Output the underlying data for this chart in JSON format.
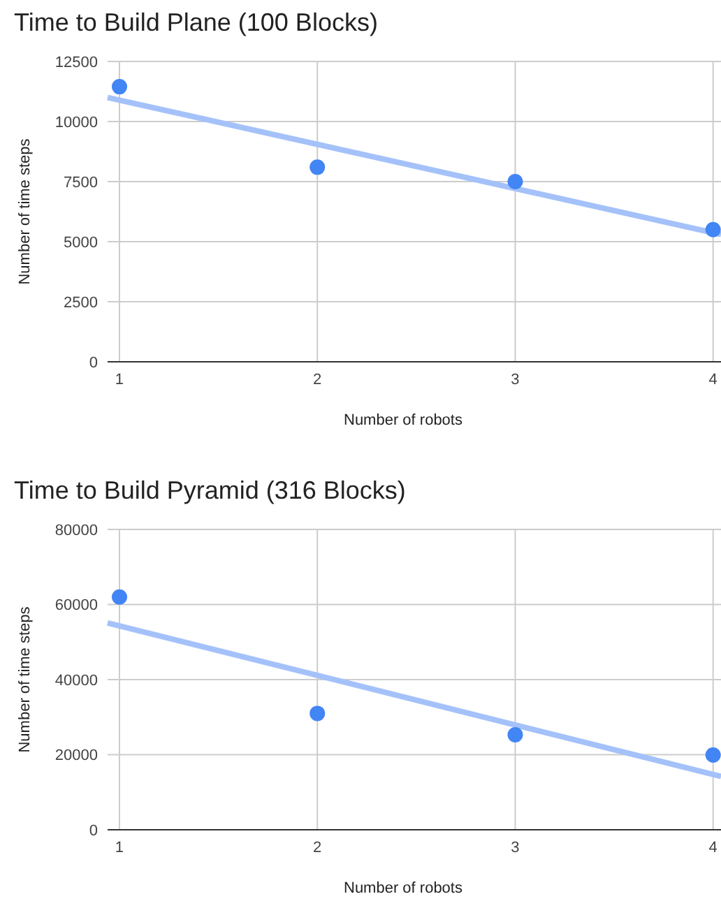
{
  "chart_data": [
    {
      "type": "scatter",
      "title": "Time to Build Plane (100 Blocks)",
      "xlabel": "Number of robots",
      "ylabel": "Number of time steps",
      "xlim": [
        0.94,
        4.04
      ],
      "xticks": [
        1,
        2,
        3,
        4
      ],
      "ylim": [
        0,
        12500
      ],
      "yticks": [
        0,
        2500,
        5000,
        7500,
        10000,
        12500
      ],
      "grid": true,
      "marker": "circle",
      "series": [
        {
          "color": "#4285f4",
          "x": [
            1,
            2,
            3,
            4
          ],
          "values": [
            11450,
            8100,
            7500,
            5500
          ]
        },
        {
          "type": "line",
          "color": "#a4c2f9",
          "x": [
            0.94,
            4.04
          ],
          "values": [
            11000,
            5300
          ],
          "line_style": "solid",
          "marker": "none"
        }
      ]
    },
    {
      "type": "scatter",
      "title": "Time to Build Pyramid (316 Blocks)",
      "xlabel": "Number of robots",
      "ylabel": "Number of time steps",
      "xlim": [
        0.94,
        4.04
      ],
      "xticks": [
        1,
        2,
        3,
        4
      ],
      "ylim": [
        0,
        80000
      ],
      "yticks": [
        0,
        20000,
        40000,
        60000,
        80000
      ],
      "grid": true,
      "marker": "circle",
      "series": [
        {
          "color": "#4285f4",
          "x": [
            1,
            2,
            3,
            4
          ],
          "values": [
            62000,
            31000,
            25300,
            19900
          ]
        },
        {
          "type": "line",
          "color": "#a4c2f9",
          "x": [
            0.94,
            4.04
          ],
          "values": [
            55100,
            14200
          ],
          "line_style": "solid",
          "marker": "none"
        }
      ]
    }
  ]
}
